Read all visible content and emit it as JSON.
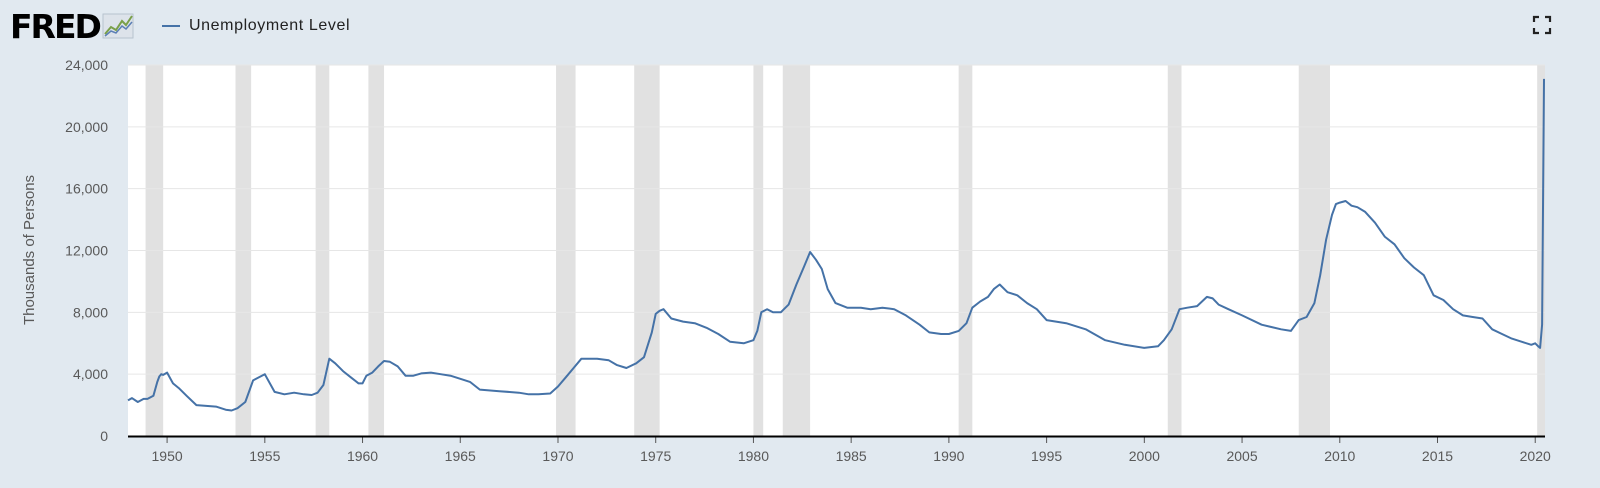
{
  "header": {
    "logo_text": "FRED",
    "legend_label": "Unemployment Level",
    "legend_color": "#4572a7",
    "fullscreen_icon": "fullscreen-icon"
  },
  "chart_data": {
    "type": "line",
    "title": "",
    "ylabel": "Thousands of Persons",
    "xlabel": "",
    "xlim": [
      1948.0,
      2020.5
    ],
    "ylim": [
      0,
      24000
    ],
    "yticks": [
      0,
      4000,
      8000,
      12000,
      16000,
      20000,
      24000
    ],
    "ytick_labels": [
      "0",
      "4,000",
      "8,000",
      "12,000",
      "16,000",
      "20,000",
      "24,000"
    ],
    "xticks": [
      1950,
      1955,
      1960,
      1965,
      1970,
      1975,
      1980,
      1985,
      1990,
      1995,
      2000,
      2005,
      2010,
      2015,
      2020
    ],
    "xtick_labels": [
      "1950",
      "1955",
      "1960",
      "1965",
      "1970",
      "1975",
      "1980",
      "1985",
      "1990",
      "1995",
      "2000",
      "2005",
      "2010",
      "2015",
      "2020"
    ],
    "grid": "horizontal",
    "colors": {
      "line": "#4572a7",
      "recession": "#e1e1e1",
      "plot_bg": "#ffffff",
      "grid": "#e6e6e6"
    },
    "recessions": [
      [
        1948.9,
        1949.8
      ],
      [
        1953.5,
        1954.3
      ],
      [
        1957.6,
        1958.3
      ],
      [
        1960.3,
        1961.1
      ],
      [
        1969.9,
        1970.9
      ],
      [
        1973.9,
        1975.2
      ],
      [
        1980.0,
        1980.5
      ],
      [
        1981.5,
        1982.9
      ],
      [
        1990.5,
        1991.2
      ],
      [
        2001.2,
        2001.9
      ],
      [
        2007.9,
        2009.5
      ],
      [
        2020.1,
        2020.5
      ]
    ],
    "series": [
      {
        "name": "Unemployment Level",
        "x": [
          1948.0,
          1948.2,
          1948.5,
          1948.8,
          1949.0,
          1949.3,
          1949.5,
          1949.6,
          1949.7,
          1949.8,
          1950.0,
          1950.3,
          1950.6,
          1951.0,
          1951.5,
          1952.0,
          1952.5,
          1953.0,
          1953.3,
          1953.6,
          1954.0,
          1954.4,
          1954.7,
          1955.0,
          1955.5,
          1956.0,
          1956.5,
          1957.0,
          1957.4,
          1957.7,
          1958.0,
          1958.3,
          1958.6,
          1959.0,
          1959.4,
          1959.8,
          1960.0,
          1960.2,
          1960.5,
          1960.8,
          1961.1,
          1961.4,
          1961.8,
          1962.2,
          1962.6,
          1963.0,
          1963.5,
          1964.0,
          1964.5,
          1965.0,
          1965.5,
          1966.0,
          1967.0,
          1968.0,
          1968.5,
          1969.0,
          1969.6,
          1970.0,
          1970.4,
          1970.8,
          1971.2,
          1972.0,
          1972.6,
          1973.0,
          1973.5,
          1974.0,
          1974.4,
          1974.8,
          1975.0,
          1975.2,
          1975.4,
          1975.8,
          1976.4,
          1977.0,
          1977.6,
          1978.2,
          1978.8,
          1979.5,
          1980.0,
          1980.2,
          1980.4,
          1980.7,
          1981.0,
          1981.4,
          1981.8,
          1982.2,
          1982.6,
          1982.9,
          1983.2,
          1983.5,
          1983.8,
          1984.2,
          1984.8,
          1985.5,
          1986.0,
          1986.6,
          1987.2,
          1987.8,
          1988.5,
          1989.0,
          1989.6,
          1990.0,
          1990.5,
          1990.9,
          1991.2,
          1991.6,
          1992.0,
          1992.3,
          1992.6,
          1993.0,
          1993.5,
          1994.0,
          1994.5,
          1995.0,
          1996.0,
          1997.0,
          1998.0,
          1999.0,
          2000.0,
          2000.7,
          2001.0,
          2001.4,
          2001.8,
          2002.2,
          2002.7,
          2003.2,
          2003.5,
          2003.8,
          2004.3,
          2005.0,
          2006.0,
          2007.0,
          2007.5,
          2007.9,
          2008.3,
          2008.7,
          2009.0,
          2009.3,
          2009.6,
          2009.8,
          2010.0,
          2010.3,
          2010.6,
          2010.9,
          2011.3,
          2011.8,
          2012.3,
          2012.8,
          2013.3,
          2013.8,
          2014.3,
          2014.8,
          2015.3,
          2015.8,
          2016.3,
          2016.8,
          2017.3,
          2017.8,
          2018.3,
          2018.8,
          2019.3,
          2019.8,
          2020.0,
          2020.15,
          2020.25,
          2020.35,
          2020.45
        ],
        "values": [
          2300,
          2450,
          2200,
          2400,
          2400,
          2600,
          3500,
          3850,
          4000,
          3950,
          4100,
          3400,
          3100,
          2600,
          2000,
          1950,
          1900,
          1700,
          1650,
          1800,
          2200,
          3600,
          3800,
          4000,
          2850,
          2700,
          2800,
          2700,
          2650,
          2800,
          3300,
          5000,
          4700,
          4200,
          3800,
          3400,
          3400,
          3900,
          4100,
          4500,
          4850,
          4800,
          4500,
          3900,
          3900,
          4050,
          4100,
          4000,
          3900,
          3700,
          3500,
          3000,
          2900,
          2800,
          2700,
          2700,
          2750,
          3200,
          3800,
          4400,
          5000,
          5000,
          4900,
          4600,
          4400,
          4700,
          5100,
          6700,
          7900,
          8100,
          8200,
          7600,
          7400,
          7300,
          7000,
          6600,
          6100,
          6000,
          6200,
          6800,
          8000,
          8200,
          8000,
          8000,
          8500,
          9800,
          11000,
          11900,
          11400,
          10800,
          9500,
          8600,
          8300,
          8300,
          8200,
          8300,
          8200,
          7800,
          7200,
          6700,
          6600,
          6600,
          6800,
          7300,
          8300,
          8700,
          9000,
          9500,
          9800,
          9300,
          9100,
          8600,
          8200,
          7500,
          7300,
          6900,
          6200,
          5900,
          5700,
          5800,
          6200,
          6900,
          8200,
          8300,
          8400,
          9000,
          8900,
          8500,
          8200,
          7800,
          7200,
          6900,
          6800,
          7500,
          7700,
          8600,
          10400,
          12700,
          14300,
          15000,
          15100,
          15200,
          14900,
          14800,
          14500,
          13800,
          12900,
          12400,
          11500,
          10900,
          10400,
          9100,
          8800,
          8200,
          7800,
          7700,
          7600,
          6900,
          6600,
          6300,
          6100,
          5900,
          6000,
          5800,
          5700,
          7200,
          23100
        ]
      }
    ]
  }
}
